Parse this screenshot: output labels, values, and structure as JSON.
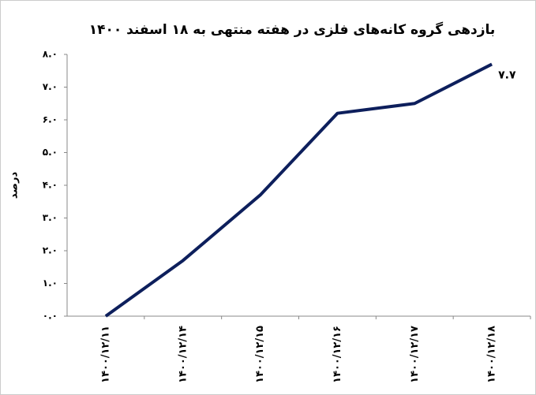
{
  "chart_data": {
    "type": "line",
    "title": "بازدهی گروه کانه‌های فلزی در هفته منتهی به ۱۸ اسفند ۱۴۰۰",
    "y_label": "درصد",
    "categories": [
      "۱۴۰۰/۱۲/۱۱",
      "۱۴۰۰/۱۲/۱۴",
      "۱۴۰۰/۱۲/۱۵",
      "۱۴۰۰/۱۲/۱۶",
      "۱۴۰۰/۱۲/۱۷",
      "۱۴۰۰/۱۲/۱۸"
    ],
    "values": [
      0,
      1.7,
      3.7,
      6.2,
      6.5,
      7.7
    ],
    "value_labels": [
      null,
      null,
      null,
      null,
      null,
      "۷.۷"
    ],
    "color": "#0d1f5c",
    "ylim": [
      0,
      8
    ],
    "yticks": [
      {
        "value": 0,
        "label": "۰.۰"
      },
      {
        "value": 1,
        "label": "۱.۰"
      },
      {
        "value": 2,
        "label": "۲.۰"
      },
      {
        "value": 3,
        "label": "۳.۰"
      },
      {
        "value": 4,
        "label": "۴.۰"
      },
      {
        "value": 5,
        "label": "۵.۰"
      },
      {
        "value": 6,
        "label": "۶.۰"
      },
      {
        "value": 7,
        "label": "۷.۰"
      },
      {
        "value": 8,
        "label": "۸.۰"
      }
    ],
    "grid": false
  }
}
